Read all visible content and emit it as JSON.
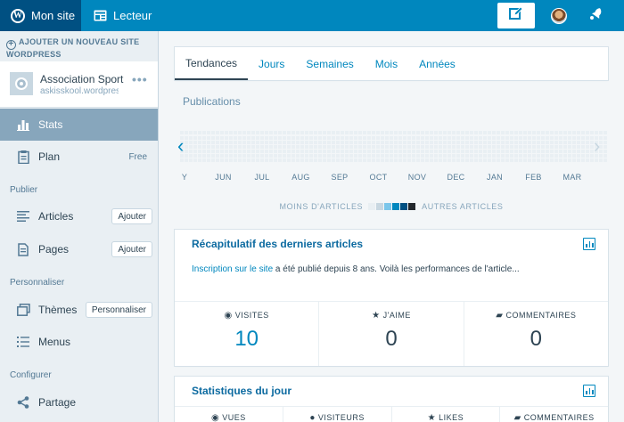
{
  "masterbar": {
    "my_site": "Mon site",
    "reader": "Lecteur",
    "icons": [
      "wordpress-icon",
      "reader-icon",
      "write-icon",
      "avatar",
      "notifications-icon"
    ]
  },
  "sidebar": {
    "add_site": "Ajouter un nouveau site WordPress",
    "site": {
      "name": "Association Sportive",
      "url": "askisskool.wordpress.com"
    },
    "items": [
      {
        "label": "Stats",
        "icon": "stats-icon"
      },
      {
        "label": "Plan",
        "tag": "Free",
        "icon": "plan-icon"
      },
      {
        "label": "Articles",
        "button": "Ajouter",
        "icon": "posts-icon"
      },
      {
        "label": "Pages",
        "button": "Ajouter",
        "icon": "pages-icon"
      },
      {
        "label": "Thèmes",
        "button": "Personnaliser",
        "icon": "themes-icon"
      },
      {
        "label": "Menus",
        "icon": "menus-icon"
      },
      {
        "label": "Partage",
        "icon": "share-icon"
      }
    ],
    "sections": {
      "publish": "Publier",
      "customize": "Personnaliser",
      "configure": "Configurer"
    }
  },
  "tabs": [
    "Tendances",
    "Jours",
    "Semaines",
    "Mois",
    "Années"
  ],
  "publications": {
    "title": "Publications",
    "months": [
      "Y",
      "JUN",
      "JUL",
      "AUG",
      "SEP",
      "OCT",
      "NOV",
      "DEC",
      "JAN",
      "FEB",
      "MAR"
    ],
    "legend_less": "Moins d'articles",
    "legend_more": "Autres articles",
    "legend_colors": [
      "#e9eff3",
      "#c8d7e1",
      "#7bc6ea",
      "#0087be",
      "#005082",
      "#23282d"
    ]
  },
  "recap": {
    "title": "Récapitulatif des derniers articles",
    "link_text": "Inscription sur le site",
    "rest_text": " a été publié depuis 8 ans. Voilà les performances de l'article...",
    "stats": [
      {
        "label": "VISITES",
        "value": "10",
        "icon": "eye-icon"
      },
      {
        "label": "J'AIME",
        "value": "0",
        "icon": "star-icon"
      },
      {
        "label": "COMMENTAIRES",
        "value": "0",
        "icon": "comment-icon"
      }
    ]
  },
  "today": {
    "title": "Statistiques du jour",
    "stats": [
      {
        "label": "VUES",
        "icon": "eye-icon"
      },
      {
        "label": "VISITEURS",
        "icon": "user-icon"
      },
      {
        "label": "LIKES",
        "icon": "star-icon"
      },
      {
        "label": "COMMENTAIRES",
        "icon": "comment-icon"
      }
    ]
  }
}
